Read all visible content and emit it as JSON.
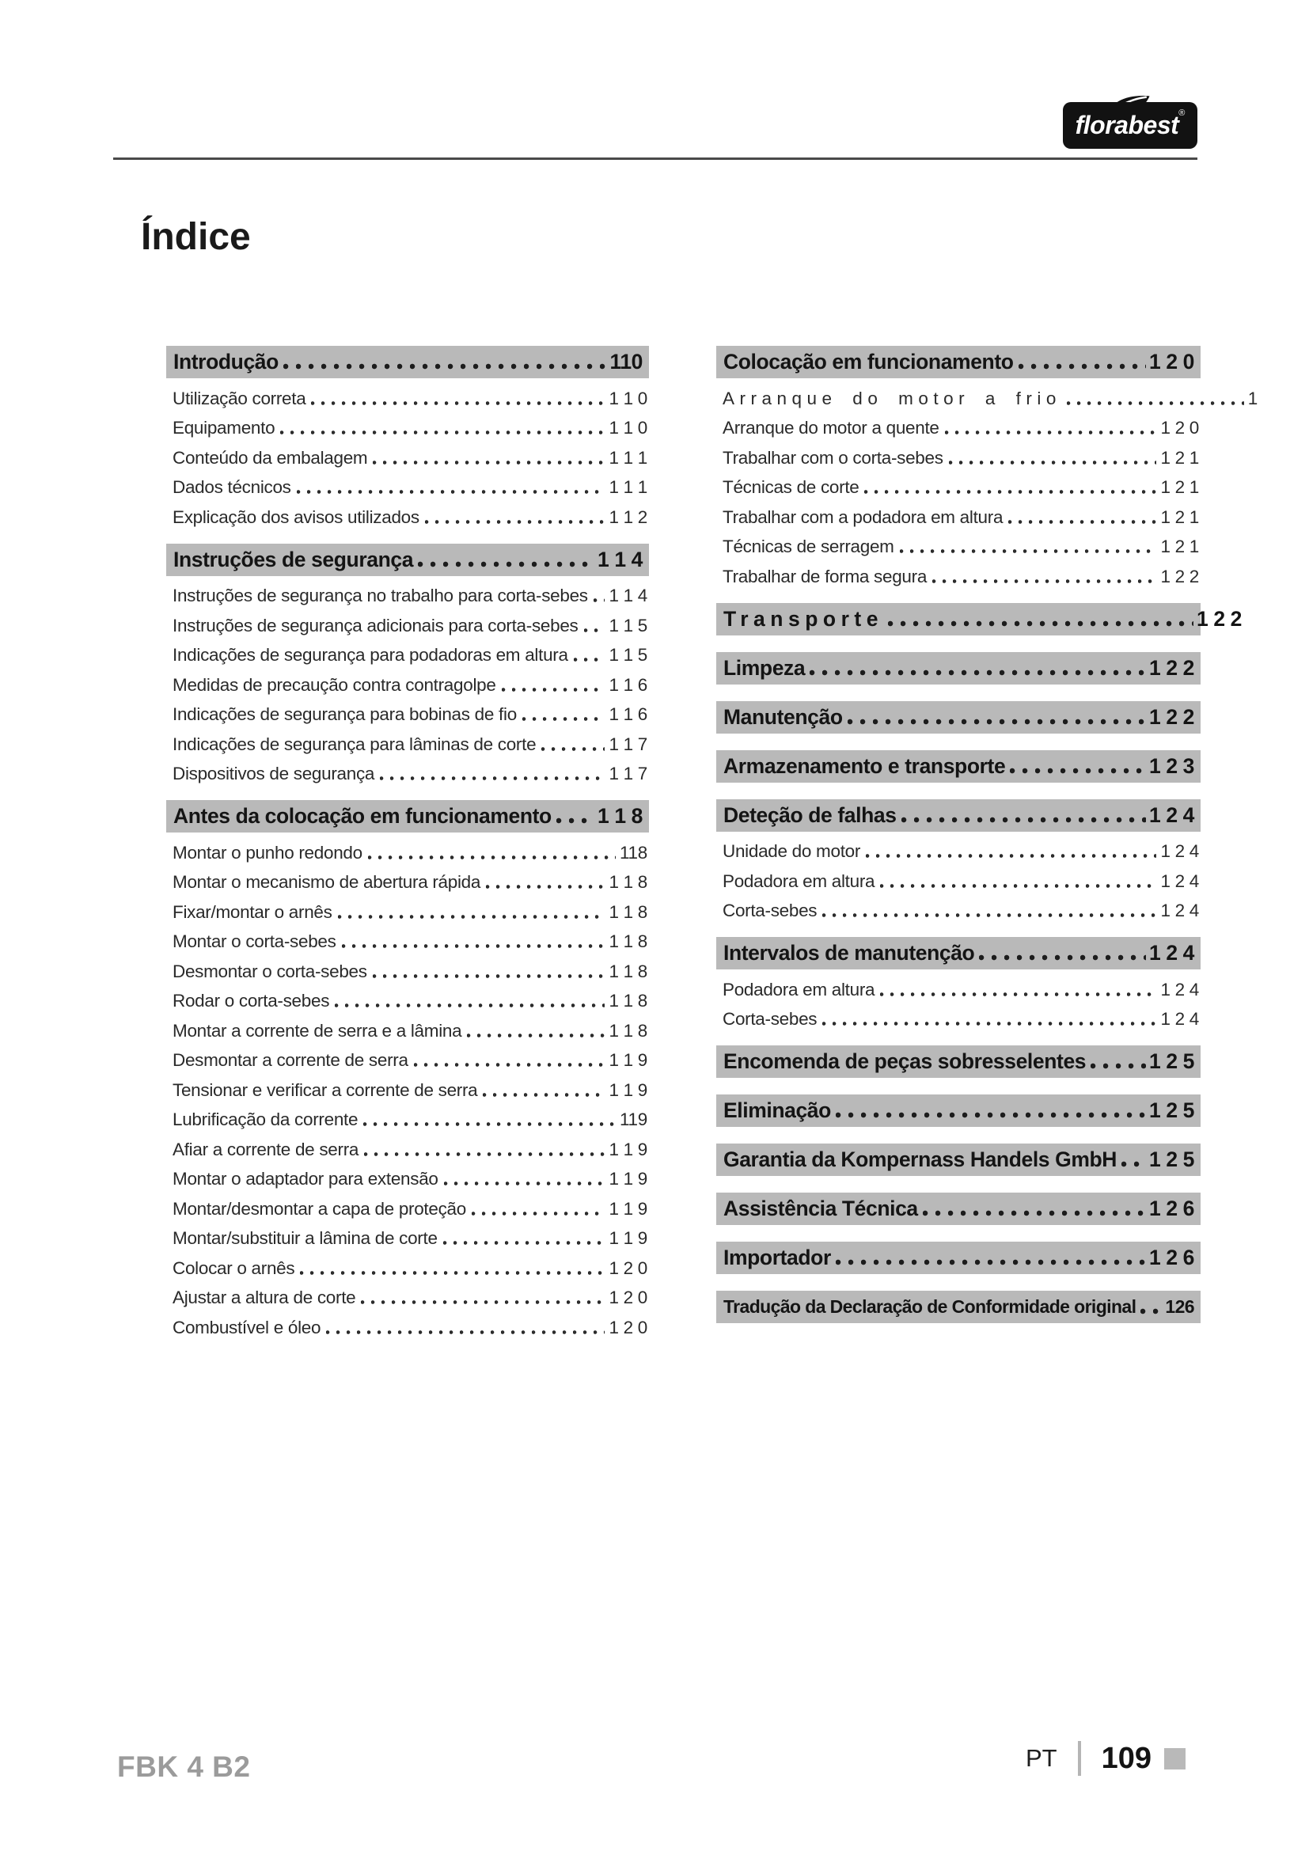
{
  "brand": {
    "logo_text": "florabest",
    "registered": "®"
  },
  "title": "Índice",
  "footer": {
    "model": "FBK 4 B2",
    "language": "PT",
    "page": "109"
  },
  "colors": {
    "section_bar": "#b9b9b9",
    "footer_gray": "#9b9b9b",
    "text": "#2a2a2a"
  },
  "toc": {
    "left": [
      {
        "type": "header",
        "label": "Introdução",
        "page": "110"
      },
      {
        "type": "entry",
        "label": "Utilização correta",
        "page": "1 1 0"
      },
      {
        "type": "entry",
        "label": "Equipamento",
        "page": "1 1 0"
      },
      {
        "type": "entry",
        "label": "Conteúdo da embalagem",
        "page": "1 1 1"
      },
      {
        "type": "entry",
        "label": "Dados técnicos",
        "page": "1 1 1"
      },
      {
        "type": "entry",
        "label": "Explicação dos avisos utilizados",
        "page": "1 1 2"
      },
      {
        "type": "header",
        "label": "Instruções de segurança",
        "page": "1 1 4"
      },
      {
        "type": "entry",
        "label": "Instruções de segurança no trabalho para corta-sebes",
        "page": "1 1 4"
      },
      {
        "type": "entry",
        "label": "Instruções de segurança adicionais para corta-sebes",
        "page": "1 1 5"
      },
      {
        "type": "entry",
        "label": "Indicações de segurança para podadoras em altura",
        "page": "1 1 5"
      },
      {
        "type": "entry",
        "label": "Medidas de precaução contra contragolpe",
        "page": "1 1 6"
      },
      {
        "type": "entry",
        "label": "Indicações de segurança para bobinas de fio",
        "page": "1 1 6"
      },
      {
        "type": "entry",
        "label": "Indicações de segurança para lâminas de corte",
        "page": "1 1 7"
      },
      {
        "type": "entry",
        "label": "Dispositivos de segurança",
        "page": "1 1 7"
      },
      {
        "type": "header",
        "label": "Antes da colocação em funcionamento",
        "page": "1 1 8"
      },
      {
        "type": "entry",
        "label": "Montar o punho redondo",
        "page": "118"
      },
      {
        "type": "entry",
        "label": "Montar o mecanismo de abertura rápida",
        "page": "1 1 8"
      },
      {
        "type": "entry",
        "label": "Fixar/montar o arnês",
        "page": "1 1 8"
      },
      {
        "type": "entry",
        "label": "Montar o corta-sebes",
        "page": "1 1 8"
      },
      {
        "type": "entry",
        "label": "Desmontar o corta-sebes",
        "page": "1 1 8"
      },
      {
        "type": "entry",
        "label": "Rodar o corta-sebes",
        "page": "1 1 8"
      },
      {
        "type": "entry",
        "label": "Montar a corrente de serra e a lâmina",
        "page": "1 1 8"
      },
      {
        "type": "entry",
        "label": "Desmontar a corrente de serra",
        "page": "1 1 9"
      },
      {
        "type": "entry",
        "label": "Tensionar e verificar a corrente de serra",
        "page": "1 1 9"
      },
      {
        "type": "entry",
        "label": "Lubrificação da corrente",
        "page": "119"
      },
      {
        "type": "entry",
        "label": "Afiar a corrente de serra",
        "page": "1 1 9"
      },
      {
        "type": "entry",
        "label": "Montar o adaptador para extensão",
        "page": "1 1 9"
      },
      {
        "type": "entry",
        "label": "Montar/desmontar a capa de proteção",
        "page": "1 1 9"
      },
      {
        "type": "entry",
        "label": "Montar/substituir a lâmina de corte",
        "page": "1 1 9"
      },
      {
        "type": "entry",
        "label": "Colocar o arnês",
        "page": "1 2 0"
      },
      {
        "type": "entry",
        "label": "Ajustar a altura de corte",
        "page": "1 2 0"
      },
      {
        "type": "entry",
        "label": "Combustível e óleo",
        "page": "1 2 0"
      }
    ],
    "right": [
      {
        "type": "header",
        "label": "Colocação em funcionamento",
        "page": "1 2 0"
      },
      {
        "type": "entry",
        "label": "Arranque do motor a frio",
        "page": "1",
        "tracked": true,
        "extend": true
      },
      {
        "type": "entry",
        "label": "Arranque do motor a quente",
        "page": "1 2 0"
      },
      {
        "type": "entry",
        "label": "Trabalhar com o corta-sebes",
        "page": "1 2 1"
      },
      {
        "type": "entry",
        "label": "Técnicas de corte",
        "page": "1 2 1"
      },
      {
        "type": "entry",
        "label": "Trabalhar com a podadora em altura",
        "page": "1 2 1"
      },
      {
        "type": "entry",
        "label": "Técnicas de serragem",
        "page": "1 2 1"
      },
      {
        "type": "entry",
        "label": "Trabalhar de forma segura",
        "page": "1 2 2"
      },
      {
        "type": "header",
        "label": "Transporte",
        "page": "1 2 2",
        "tracked": true,
        "num_outside": true
      },
      {
        "type": "header",
        "label": "Limpeza",
        "page": "1 2 2"
      },
      {
        "type": "header",
        "label": "Manutenção",
        "page": "1 2 2"
      },
      {
        "type": "header",
        "label": "Armazenamento e transporte",
        "page": "1 2 3"
      },
      {
        "type": "header",
        "label": "Deteção de falhas",
        "page": "1 2 4"
      },
      {
        "type": "entry",
        "label": "Unidade do motor",
        "page": "1 2 4"
      },
      {
        "type": "entry",
        "label": "Podadora em altura",
        "page": "1 2 4"
      },
      {
        "type": "entry",
        "label": "Corta-sebes",
        "page": "1 2 4"
      },
      {
        "type": "header",
        "label": "Intervalos de manutenção",
        "page": "1 2 4"
      },
      {
        "type": "entry",
        "label": "Podadora em altura",
        "page": "1 2 4"
      },
      {
        "type": "entry",
        "label": "Corta-sebes",
        "page": "1 2 4"
      },
      {
        "type": "header",
        "label": "Encomenda de peças sobresselentes",
        "page": "1 2 5"
      },
      {
        "type": "header",
        "label": "Eliminação",
        "page": "1 2 5"
      },
      {
        "type": "header",
        "label": "Garantia da Kompernass Handels GmbH",
        "page": "1 2 5"
      },
      {
        "type": "header",
        "label": "Assistência Técnica",
        "page": "1 2 6"
      },
      {
        "type": "header",
        "label": "Importador",
        "page": "1 2 6"
      },
      {
        "type": "header",
        "label": "Tradução da Declaração de Conformidade original",
        "page": "126",
        "small": true
      }
    ]
  }
}
